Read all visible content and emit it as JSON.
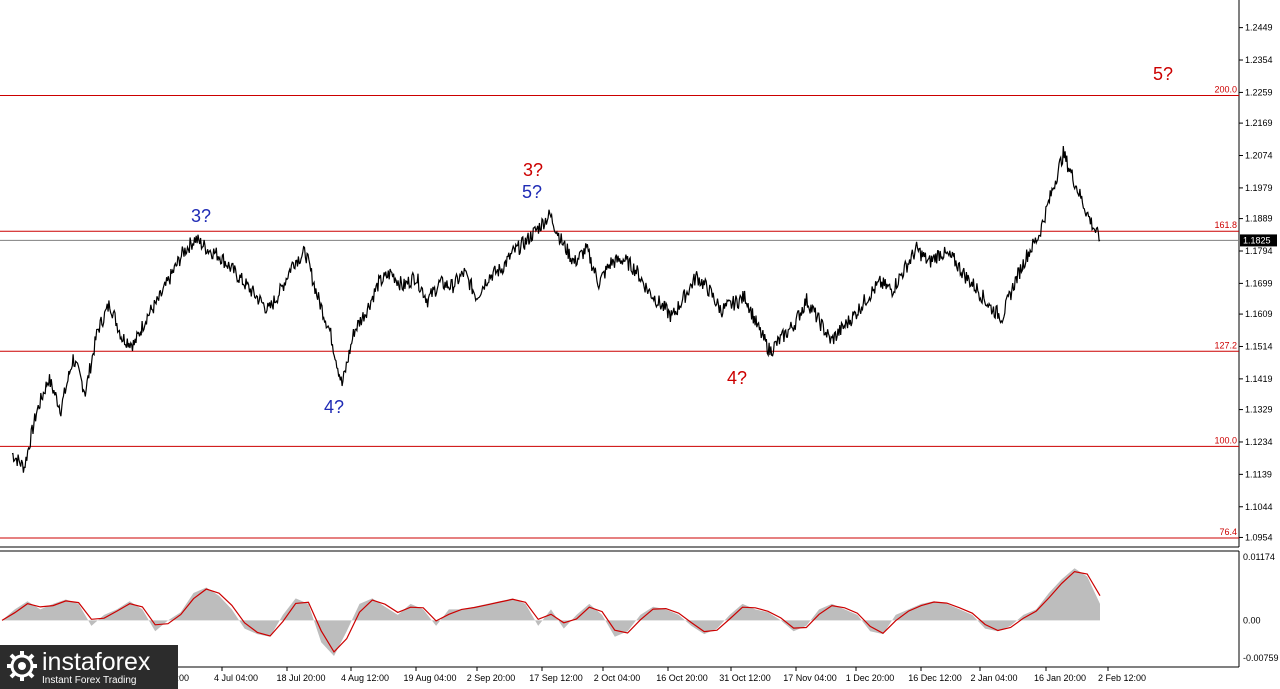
{
  "chart_data": [
    {
      "type": "line",
      "symbol_label": "",
      "title": "",
      "ylim": [
        1.0926,
        1.253
      ],
      "price_levels": [
        1.2449,
        1.2354,
        1.2259,
        1.2169,
        1.2074,
        1.1979,
        1.1889,
        1.1794,
        1.1699,
        1.1609,
        1.1514,
        1.1419,
        1.1329,
        1.1234,
        1.1139,
        1.1044,
        1.0954
      ],
      "price_level_labels": [
        "1.2449",
        "1.2354",
        "1.2259",
        "1.2169",
        "1.2074",
        "1.1979",
        "1.1889",
        "1.1794",
        "1.1699",
        "1.1609",
        "1.1514",
        "1.1419",
        "1.1329",
        "1.1234",
        "1.1139",
        "1.1044",
        "1.0954"
      ],
      "current_price": 1.1825,
      "current_price_label": "1.1825",
      "fibonacci_levels": [
        {
          "label": "200.0",
          "price": 1.225
        },
        {
          "label": "161.8",
          "price": 1.1852
        },
        {
          "label": "127.2",
          "price": 1.15
        },
        {
          "label": "100.0",
          "price": 1.1221
        },
        {
          "label": "76.4",
          "price": 0.0,
          "near_bottom": true
        }
      ],
      "time_labels": [
        "19 Jun 12:00",
        "4 Jul 04:00",
        "18 Jul 20:00",
        "4 Aug 12:00",
        "19 Aug 04:00",
        "2 Sep 20:00",
        "17 Sep 12:00",
        "2 Oct 04:00",
        "16 Oct 20:00",
        "31 Oct 12:00",
        "17 Nov 04:00",
        "1 Dec 20:00",
        "16 Dec 12:00",
        "2 Jan 04:00",
        "16 Jan 20:00",
        "2 Feb 12:00"
      ],
      "wave_labels": [
        {
          "text": "3?",
          "color": "blue",
          "at": "19 Jun-4 Jul peak",
          "price_ref": 1.182
        },
        {
          "text": "4?",
          "color": "blue",
          "at": "early Aug low",
          "price_ref": 1.14
        },
        {
          "text": "5?",
          "color": "blue",
          "at": "mid Sep peak",
          "price_ref": 1.192
        },
        {
          "text": "3?",
          "color": "red",
          "at": "mid Sep peak",
          "price_ref": 1.192
        },
        {
          "text": "4?",
          "color": "red",
          "at": "early Nov low",
          "price_ref": 1.147
        },
        {
          "text": "5?",
          "color": "red",
          "at": "projection beyond 2 Feb",
          "price_ref": 1.226
        }
      ],
      "price_path": [
        [
          0,
          1.12
        ],
        [
          2,
          1.116
        ],
        [
          4,
          1.132
        ],
        [
          6,
          1.142
        ],
        [
          8,
          1.133
        ],
        [
          10,
          1.148
        ],
        [
          12,
          1.138
        ],
        [
          14,
          1.156
        ],
        [
          16,
          1.164
        ],
        [
          18,
          1.154
        ],
        [
          20,
          1.152
        ],
        [
          22,
          1.16
        ],
        [
          24,
          1.165
        ],
        [
          26,
          1.172
        ],
        [
          28,
          1.179
        ],
        [
          30,
          1.183
        ],
        [
          32,
          1.18
        ],
        [
          34,
          1.178
        ],
        [
          36,
          1.174
        ],
        [
          38,
          1.17
        ],
        [
          40,
          1.166
        ],
        [
          42,
          1.162
        ],
        [
          44,
          1.168
        ],
        [
          46,
          1.176
        ],
        [
          48,
          1.179
        ],
        [
          50,
          1.166
        ],
        [
          52,
          1.156
        ],
        [
          54,
          1.14
        ],
        [
          56,
          1.156
        ],
        [
          58,
          1.162
        ],
        [
          60,
          1.17
        ],
        [
          62,
          1.173
        ],
        [
          64,
          1.169
        ],
        [
          66,
          1.172
        ],
        [
          68,
          1.165
        ],
        [
          70,
          1.17
        ],
        [
          72,
          1.169
        ],
        [
          74,
          1.173
        ],
        [
          76,
          1.166
        ],
        [
          78,
          1.172
        ],
        [
          80,
          1.174
        ],
        [
          82,
          1.179
        ],
        [
          84,
          1.182
        ],
        [
          86,
          1.186
        ],
        [
          88,
          1.19
        ],
        [
          90,
          1.182
        ],
        [
          92,
          1.176
        ],
        [
          94,
          1.18
        ],
        [
          96,
          1.17
        ],
        [
          98,
          1.176
        ],
        [
          100,
          1.177
        ],
        [
          102,
          1.174
        ],
        [
          104,
          1.168
        ],
        [
          106,
          1.164
        ],
        [
          108,
          1.16
        ],
        [
          110,
          1.166
        ],
        [
          112,
          1.172
        ],
        [
          114,
          1.168
        ],
        [
          116,
          1.162
        ],
        [
          118,
          1.164
        ],
        [
          120,
          1.166
        ],
        [
          122,
          1.157
        ],
        [
          124,
          1.15
        ],
        [
          126,
          1.154
        ],
        [
          128,
          1.158
        ],
        [
          130,
          1.165
        ],
        [
          132,
          1.159
        ],
        [
          134,
          1.153
        ],
        [
          136,
          1.157
        ],
        [
          138,
          1.161
        ],
        [
          140,
          1.166
        ],
        [
          142,
          1.17
        ],
        [
          144,
          1.168
        ],
        [
          146,
          1.174
        ],
        [
          148,
          1.18
        ],
        [
          150,
          1.176
        ],
        [
          152,
          1.179
        ],
        [
          154,
          1.177
        ],
        [
          156,
          1.172
        ],
        [
          158,
          1.168
        ],
        [
          160,
          1.163
        ],
        [
          162,
          1.16
        ],
        [
          164,
          1.17
        ],
        [
          166,
          1.178
        ],
        [
          168,
          1.184
        ],
        [
          170,
          1.196
        ],
        [
          172,
          1.208
        ],
        [
          174,
          1.199
        ],
        [
          176,
          1.19
        ],
        [
          178,
          1.1825
        ]
      ],
      "oscillator": {
        "range_labels": [
          "0.01174",
          "0.00",
          "-0.00759"
        ],
        "ylim": [
          -0.00759,
          0.01174
        ],
        "values": [
          0.0,
          0.002,
          0.0035,
          0.002,
          0.003,
          0.0038,
          0.003,
          -0.001,
          0.001,
          0.002,
          0.0035,
          0.002,
          -0.002,
          0.0,
          0.0015,
          0.005,
          0.006,
          0.0045,
          0.002,
          -0.0015,
          -0.0025,
          -0.003,
          0.001,
          0.004,
          0.003,
          -0.004,
          -0.0065,
          -0.002,
          0.003,
          0.004,
          0.0025,
          0.001,
          0.003,
          0.002,
          -0.001,
          0.002,
          0.002,
          0.0025,
          0.003,
          0.0035,
          0.004,
          0.003,
          -0.001,
          0.002,
          -0.0015,
          0.001,
          0.003,
          0.001,
          -0.003,
          -0.002,
          0.001,
          0.0025,
          0.002,
          0.001,
          -0.001,
          -0.0025,
          -0.0015,
          0.001,
          0.003,
          0.002,
          0.0015,
          0.0,
          -0.002,
          -0.001,
          0.002,
          0.003,
          0.002,
          0.001,
          -0.002,
          -0.0025,
          0.001,
          0.002,
          0.003,
          0.0035,
          0.003,
          0.002,
          0.001,
          -0.0015,
          -0.002,
          -0.001,
          0.001,
          0.002,
          0.005,
          0.0075,
          0.0095,
          0.008,
          0.003
        ]
      }
    }
  ],
  "branding": {
    "name": "instaforex",
    "tagline": "Instant Forex Trading"
  },
  "colors": {
    "price": "#000000",
    "fib_line": "#cc0000",
    "current_line": "#808080",
    "osc_fill": "#bdbdbd",
    "osc_line": "#cc0000",
    "wave_blue": "#1f2bb5",
    "wave_red": "#cc0000"
  }
}
